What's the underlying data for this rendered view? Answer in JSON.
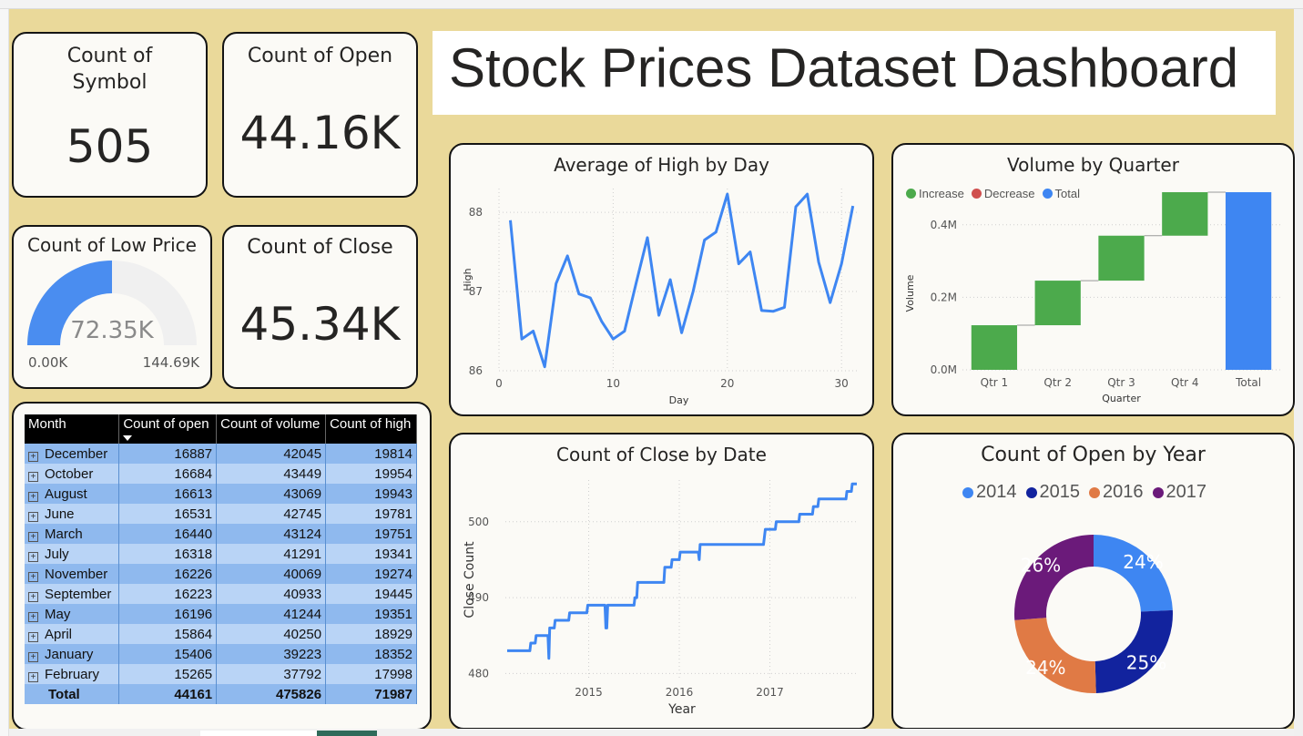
{
  "dashboard": {
    "title": "Stock Prices Dataset Dashboard"
  },
  "kpis": {
    "symbol": {
      "label": "Count of Symbol",
      "label_line1": "Count of",
      "label_line2": "Symbol",
      "value": "505"
    },
    "open": {
      "label": "Count of Open",
      "value": "44.16K"
    },
    "close": {
      "label": "Count of Close",
      "value": "45.34K"
    }
  },
  "gauge": {
    "label": "Count of Low Price",
    "value_label": "72.35K",
    "min_label": "0.00K",
    "max_label": "144.69K",
    "fraction": 0.5,
    "fill_color": "#4a8df0",
    "track_color": "#f0f0f0"
  },
  "matrix": {
    "headers": [
      "Month",
      "Count of open",
      "Count of volume",
      "Count of high"
    ],
    "sort_indicator": "sort-down-icon",
    "rows": [
      {
        "month": "December",
        "open": "16887",
        "volume": "42045",
        "high": "19814"
      },
      {
        "month": "October",
        "open": "16684",
        "volume": "43449",
        "high": "19954"
      },
      {
        "month": "August",
        "open": "16613",
        "volume": "43069",
        "high": "19943"
      },
      {
        "month": "June",
        "open": "16531",
        "volume": "42745",
        "high": "19781"
      },
      {
        "month": "March",
        "open": "16440",
        "volume": "43124",
        "high": "19751"
      },
      {
        "month": "July",
        "open": "16318",
        "volume": "41291",
        "high": "19341"
      },
      {
        "month": "November",
        "open": "16226",
        "volume": "40069",
        "high": "19274"
      },
      {
        "month": "September",
        "open": "16223",
        "volume": "40933",
        "high": "19445"
      },
      {
        "month": "May",
        "open": "16196",
        "volume": "41244",
        "high": "19351"
      },
      {
        "month": "April",
        "open": "15864",
        "volume": "40250",
        "high": "18929"
      },
      {
        "month": "January",
        "open": "15406",
        "volume": "39223",
        "high": "18352"
      },
      {
        "month": "February",
        "open": "15265",
        "volume": "37792",
        "high": "17998"
      }
    ],
    "total": {
      "month": "Total",
      "open": "44161",
      "volume": "475826",
      "high": "71987"
    }
  },
  "chart_data": [
    {
      "id": "avg_high_by_day",
      "type": "line",
      "title": "Average of High by Day",
      "xlabel": "Day",
      "ylabel": "High",
      "xlim": [
        0,
        31.5
      ],
      "ylim": [
        86,
        88.3
      ],
      "xticks": [
        0,
        10,
        20,
        30
      ],
      "yticks": [
        86,
        87,
        88
      ],
      "grid": true,
      "color": "#3e86f2",
      "x": [
        1,
        2,
        3,
        4,
        5,
        6,
        7,
        8,
        9,
        10,
        11,
        12,
        13,
        14,
        15,
        16,
        17,
        18,
        19,
        20,
        21,
        22,
        23,
        24,
        25,
        26,
        27,
        28,
        29,
        30,
        31
      ],
      "y": [
        87.9,
        86.4,
        86.5,
        86.05,
        87.1,
        87.45,
        86.97,
        86.92,
        86.62,
        86.4,
        86.5,
        87.1,
        87.68,
        86.7,
        87.15,
        86.48,
        87.0,
        87.65,
        87.75,
        88.23,
        87.35,
        87.5,
        86.76,
        86.75,
        86.8,
        88.07,
        88.23,
        87.37,
        86.86,
        87.35,
        88.08
      ]
    },
    {
      "id": "volume_by_quarter",
      "type": "bar",
      "subtype": "waterfall",
      "title": "Volume by Quarter",
      "xlabel": "Quarter",
      "ylabel": "Volume",
      "categories": [
        "Qtr 1",
        "Qtr 2",
        "Qtr 3",
        "Qtr 4",
        "Total"
      ],
      "values": [
        123000,
        123000,
        124000,
        120000,
        490000
      ],
      "ylim": [
        0,
        500000
      ],
      "yticks": [
        0,
        200000,
        400000
      ],
      "yticklabels": [
        "0.0M",
        "0.2M",
        "0.4M"
      ],
      "legend": [
        {
          "name": "Increase",
          "color": "#4caa4c"
        },
        {
          "name": "Decrease",
          "color": "#d0504f"
        },
        {
          "name": "Total",
          "color": "#3e86f2"
        }
      ],
      "legend_position": "top-left",
      "grid": true
    },
    {
      "id": "count_close_by_date",
      "type": "line",
      "title": "Count of Close by Date",
      "xlabel": "Year",
      "ylabel": "Close Count",
      "xlim": [
        2014.08,
        2017.98
      ],
      "ylim": [
        479.2,
        505.5
      ],
      "xticks": [
        2015,
        2016,
        2017
      ],
      "yticks": [
        480,
        490,
        500
      ],
      "grid": true,
      "color": "#3e86f2",
      "x": [
        2014.1,
        2014.35,
        2014.36,
        2014.41,
        2014.42,
        2014.45,
        2014.46,
        2014.55,
        2014.56,
        2014.57,
        2014.59,
        2014.6,
        2014.62,
        2014.63,
        2014.68,
        2014.69,
        2014.78,
        2014.79,
        2014.98,
        2014.99,
        2015.18,
        2015.19,
        2015.2,
        2015.21,
        2015.5,
        2015.51,
        2015.53,
        2015.54,
        2015.83,
        2015.84,
        2015.91,
        2015.92,
        2015.93,
        2016.0,
        2016.01,
        2016.2,
        2016.21,
        2016.22,
        2016.23,
        2016.5,
        2016.51,
        2016.93,
        2016.94,
        2016.95,
        2017.06,
        2017.07,
        2017.32,
        2017.33,
        2017.47,
        2017.48,
        2017.53,
        2017.54,
        2017.84,
        2017.85,
        2017.9,
        2017.91,
        2017.96
      ],
      "y": [
        483,
        483,
        484,
        484,
        485,
        485,
        485,
        485,
        482,
        486,
        486,
        486,
        486,
        487,
        487,
        487,
        487,
        488,
        488,
        489,
        489,
        486,
        486,
        489,
        489,
        490,
        490,
        492,
        492,
        494,
        494,
        495,
        495,
        495,
        496,
        496,
        496,
        495,
        497,
        497,
        497,
        497,
        498,
        499,
        499,
        500,
        500,
        501,
        501,
        502,
        502,
        503,
        503,
        504,
        504,
        505,
        505
      ]
    },
    {
      "id": "count_open_by_year",
      "type": "pie",
      "subtype": "donut",
      "title": "Count of Open by Year",
      "categories": [
        "2014",
        "2015",
        "2016",
        "2017"
      ],
      "values": [
        24,
        25,
        24,
        26
      ],
      "labels": [
        "24%",
        "25%",
        "24%",
        "26%"
      ],
      "colors": [
        "#3e86f2",
        "#12239e",
        "#e07a45",
        "#6b1a7a"
      ],
      "legend_position": "top"
    }
  ]
}
